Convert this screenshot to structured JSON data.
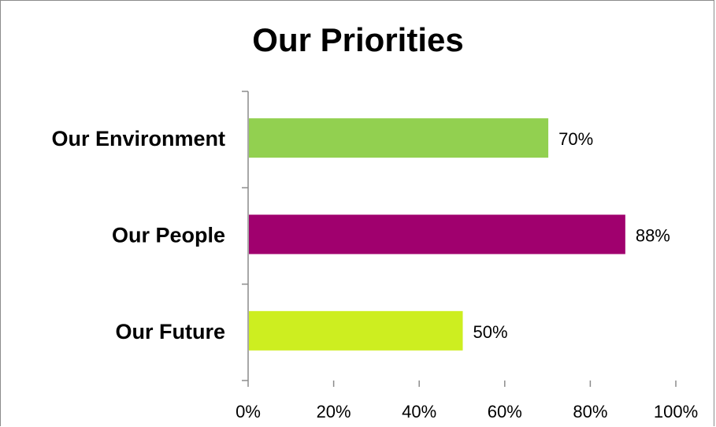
{
  "chart_data": {
    "type": "bar",
    "orientation": "horizontal",
    "title": "Our Priorities",
    "categories": [
      "Our Environment",
      "Our People",
      "Our Future"
    ],
    "values": [
      70,
      88,
      50
    ],
    "value_labels": [
      "70%",
      "88%",
      "50%"
    ],
    "colors": [
      "#92d050",
      "#a0006e",
      "#cdee20"
    ],
    "xlim": [
      0,
      100
    ],
    "xticks": [
      "0%",
      "20%",
      "40%",
      "60%",
      "80%",
      "100%"
    ],
    "grid": false,
    "legend": "none"
  }
}
